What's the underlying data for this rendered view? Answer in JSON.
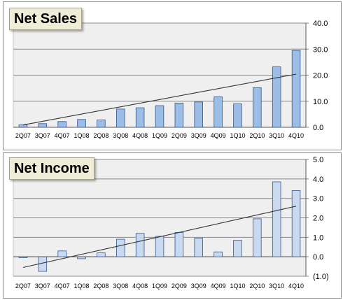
{
  "chart_data": [
    {
      "type": "bar",
      "title": "Net Sales",
      "categories": [
        "2Q07",
        "3Q07",
        "4Q07",
        "1Q08",
        "2Q08",
        "3Q08",
        "4Q08",
        "1Q09",
        "2Q09",
        "3Q09",
        "4Q09",
        "1Q10",
        "2Q10",
        "3Q10",
        "4Q10"
      ],
      "values": [
        0.9,
        1.4,
        2.2,
        3.0,
        2.8,
        7.0,
        7.5,
        8.3,
        9.3,
        9.7,
        11.7,
        9.0,
        15.2,
        23.2,
        29.5
      ],
      "trendline": {
        "type": "linear",
        "start": 0.9,
        "end": 20.4
      },
      "ylim": [
        0,
        40
      ],
      "y_ticks": [
        "0.0",
        "10.0",
        "20.0",
        "30.0",
        "40.0"
      ],
      "y_tick_values": [
        0,
        10,
        20,
        30,
        40
      ],
      "grid": true,
      "y_axis_side": "right",
      "bar_color": "#9cbde6",
      "bar_edge_color": "#34578f",
      "plot_bg": "#efefef"
    },
    {
      "type": "bar",
      "title": "Net Income",
      "categories": [
        "2Q07",
        "3Q07",
        "4Q07",
        "1Q08",
        "2Q08",
        "3Q08",
        "4Q08",
        "1Q09",
        "2Q09",
        "3Q09",
        "4Q09",
        "1Q10",
        "2Q10",
        "3Q10",
        "4Q10"
      ],
      "values": [
        -0.05,
        -0.75,
        0.3,
        -0.1,
        0.2,
        0.9,
        1.2,
        1.05,
        1.25,
        0.95,
        0.25,
        0.85,
        1.95,
        3.85,
        3.4
      ],
      "trendline": {
        "type": "linear",
        "start": -0.55,
        "end": 2.6
      },
      "ylim": [
        -1,
        5
      ],
      "y_ticks": [
        "(1.0)",
        "0.0",
        "1.0",
        "2.0",
        "3.0",
        "4.0",
        "5.0"
      ],
      "y_tick_values": [
        -1,
        0,
        1,
        2,
        3,
        4,
        5
      ],
      "grid": true,
      "y_axis_side": "right",
      "bar_color": "#c9d9f0",
      "bar_edge_color": "#34578f",
      "plot_bg": "#efefef"
    }
  ]
}
